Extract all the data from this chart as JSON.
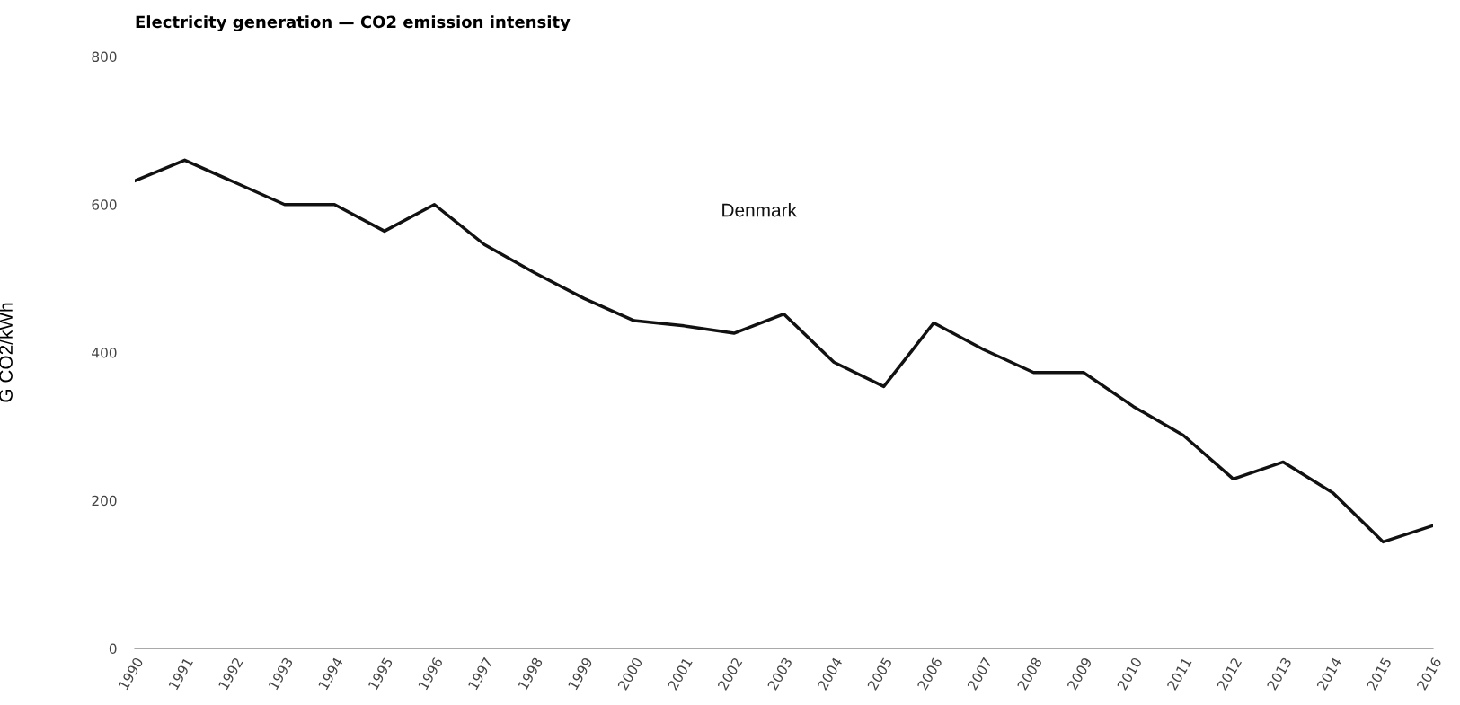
{
  "chart_data": {
    "type": "line",
    "title": "Electricity generation — CO2 emission intensity",
    "ylabel": "G CO2/kWh",
    "categories": [
      "1990",
      "1991",
      "1992",
      "1993",
      "1994",
      "1995",
      "1996",
      "1997",
      "1998",
      "1999",
      "2000",
      "2001",
      "2002",
      "2003",
      "2004",
      "2005",
      "2006",
      "2007",
      "2008",
      "2009",
      "2010",
      "2011",
      "2012",
      "2013",
      "2014",
      "2015",
      "2016"
    ],
    "series": [
      {
        "name": "Denmark",
        "color": "#111111",
        "values": [
          632,
          660,
          630,
          600,
          600,
          564,
          600,
          546,
          508,
          473,
          443,
          436,
          426,
          452,
          387,
          354,
          440,
          404,
          373,
          373,
          327,
          288,
          229,
          252,
          210,
          144,
          166
        ]
      }
    ],
    "ylim": [
      0,
      800
    ],
    "yticks": [
      0,
      200,
      400,
      600,
      800
    ],
    "grid": false,
    "legend": false,
    "marker": "none",
    "line_style": "solid"
  }
}
